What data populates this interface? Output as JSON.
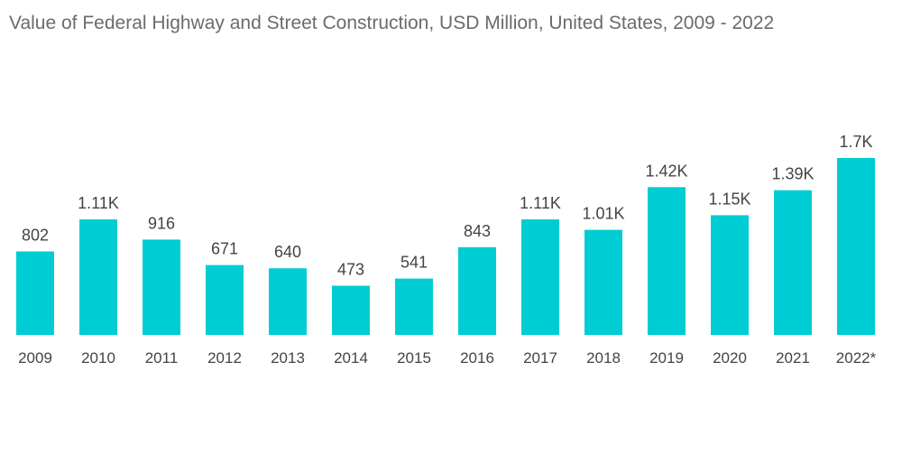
{
  "chart_data": {
    "type": "bar",
    "title": "Value of Federal Highway and Street Construction, USD Million, United States, 2009 - 2022",
    "xlabel": "",
    "ylabel": "",
    "ylim": [
      0,
      1700
    ],
    "grid": false,
    "legend": "none",
    "categories": [
      "2009",
      "2010",
      "2011",
      "2012",
      "2013",
      "2014",
      "2015",
      "2016",
      "2017",
      "2018",
      "2019",
      "2020",
      "2021",
      "2022*"
    ],
    "values": [
      802,
      1110,
      916,
      671,
      640,
      473,
      541,
      843,
      1110,
      1010,
      1420,
      1150,
      1390,
      1700
    ],
    "value_labels": [
      "802",
      "1.11K",
      "916",
      "671",
      "640",
      "473",
      "541",
      "843",
      "1.11K",
      "1.01K",
      "1.42K",
      "1.15K",
      "1.39K",
      "1.7K"
    ],
    "colors": {
      "bar": "#00cdd3",
      "text": "#444444",
      "title": "#6b6b6b"
    }
  }
}
